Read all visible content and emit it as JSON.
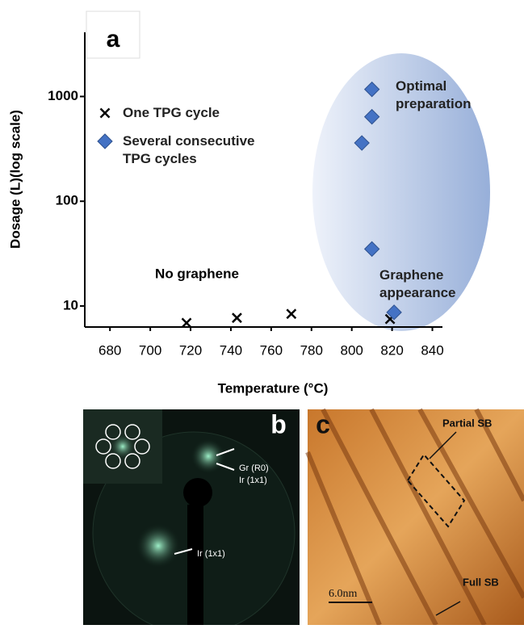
{
  "chart_data": {
    "type": "scatter",
    "panel_label": "a",
    "x_label": "Temperature (°C)",
    "y_label": "Dosage (L)(log scale)",
    "log_y": true,
    "legend": "upper left",
    "xlim": [
      667.5,
      845
    ],
    "xticks": [
      680,
      700,
      720,
      740,
      760,
      780,
      800,
      820,
      840
    ],
    "ylim": [
      6.3,
      4100
    ],
    "yticks": [
      10,
      100,
      1000
    ],
    "series": [
      {
        "name": "One TPG cycle",
        "marker": "x",
        "color": "#000000",
        "x": [
          718,
          743,
          770,
          819
        ],
        "values": [
          6.9,
          7.7,
          8.4,
          7.5
        ]
      },
      {
        "name": "Several consecutive TPG cycles",
        "marker": "diamond",
        "color": "#4472c4",
        "x": [
          810,
          810,
          805,
          810,
          821
        ],
        "values": [
          1170,
          640,
          360,
          35,
          8.7
        ]
      }
    ],
    "annotations": [
      "No graphene",
      "Optimal preparation",
      "Graphene appearance"
    ]
  },
  "panels": {
    "b": {
      "label": "b",
      "texts": [
        "Gr (R0)",
        "Ir (1x1)",
        "Ir (1x1)"
      ]
    },
    "c": {
      "label": "c",
      "texts": [
        "Partial SB",
        "Full SB",
        "6.0nm"
      ]
    }
  }
}
